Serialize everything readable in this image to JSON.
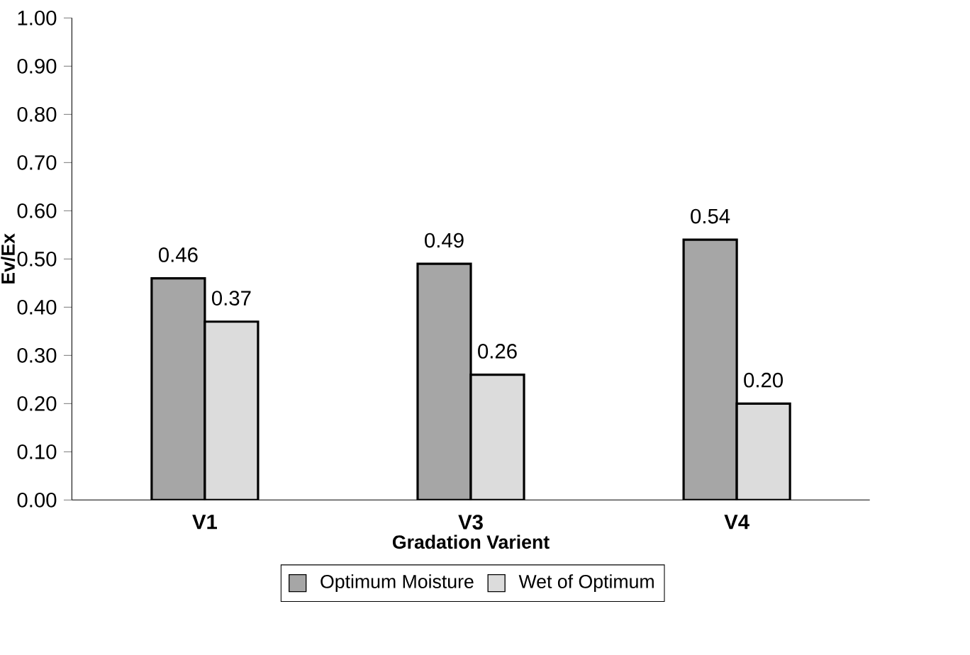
{
  "chart_data": {
    "type": "bar",
    "xlabel": "Gradation Varient",
    "ylabel": "Ev/Ex",
    "categories": [
      "V1",
      "V3",
      "V4"
    ],
    "series": [
      {
        "name": "Optimum Moisture",
        "color": "#a6a6a6",
        "values": [
          0.46,
          0.49,
          0.54
        ],
        "value_labels": [
          "0.46",
          "0.49",
          "0.54"
        ]
      },
      {
        "name": "Wet of Optimum",
        "color": "#dcdcdc",
        "values": [
          0.37,
          0.26,
          0.2
        ],
        "value_labels": [
          "0.37",
          "0.26",
          "0.20"
        ]
      }
    ],
    "ylim": [
      0,
      1
    ],
    "yticks": [
      {
        "value": 0,
        "label": "0.00"
      },
      {
        "value": 0.1,
        "label": "0.10"
      },
      {
        "value": 0.2,
        "label": "0.20"
      },
      {
        "value": 0.3,
        "label": "0.30"
      },
      {
        "value": 0.4,
        "label": "0.40"
      },
      {
        "value": 0.5,
        "label": "0.50"
      },
      {
        "value": 0.6,
        "label": "0.60"
      },
      {
        "value": 0.7,
        "label": "0.70"
      },
      {
        "value": 0.8,
        "label": "0.80"
      },
      {
        "value": 0.9,
        "label": "0.90"
      },
      {
        "value": 1,
        "label": "1.00"
      }
    ],
    "legend": "bottom",
    "grid": false
  }
}
